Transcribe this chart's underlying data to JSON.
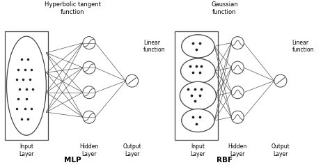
{
  "bg_color": "#ffffff",
  "line_color": "#444444",
  "text_color": "#000000",
  "node_edge_color": "#444444",
  "dot_color": "#222222",
  "mlp_title": "Hyperbolic tangent\nfunction",
  "rbf_title": "Gaussian\nfunction",
  "linear_label": "Linear\nfunction",
  "mlp_label": "MLP",
  "rbf_label": "RBF",
  "input_label": "Input\nLayer",
  "hidden_label": "Hidden\nLayer",
  "output_label": "Output\nLayer"
}
